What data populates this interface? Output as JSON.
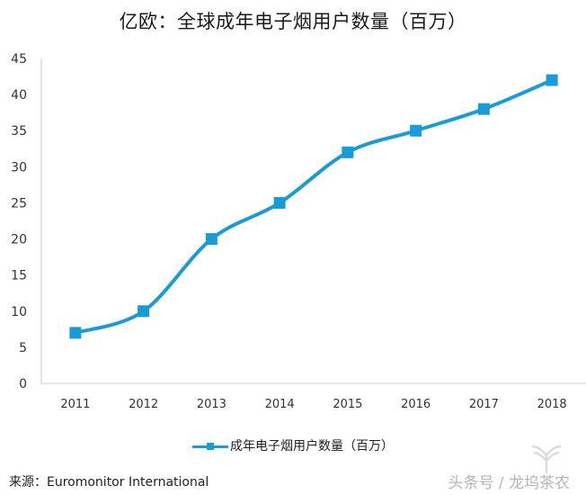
{
  "chart_data": {
    "type": "line",
    "title": "亿欧：全球成年电子烟用户数量（百万）",
    "categories": [
      "2011",
      "2012",
      "2013",
      "2014",
      "2015",
      "2016",
      "2017",
      "2018"
    ],
    "series": [
      {
        "name": "成年电子烟用户数量（百万）",
        "values": [
          7,
          10,
          20,
          25,
          32,
          35,
          38,
          42
        ],
        "color": "#1a9ad6",
        "marker": "square",
        "smooth": true
      }
    ],
    "xlabel": "",
    "ylabel": "",
    "ylim": [
      0,
      45
    ],
    "yticks": [
      0,
      5,
      10,
      15,
      20,
      25,
      30,
      35,
      40,
      45
    ],
    "grid": false,
    "legend_position": "bottom"
  },
  "title": "亿欧：全球成年电子烟用户数量（百万）",
  "legend": {
    "label": "成年电子烟用户数量（百万）"
  },
  "source": "来源：Euromonitor International",
  "watermark": "头条号 / 龙坞茶农",
  "colors": {
    "series": "#1a9ad6",
    "axis": "#c8c8c8"
  }
}
